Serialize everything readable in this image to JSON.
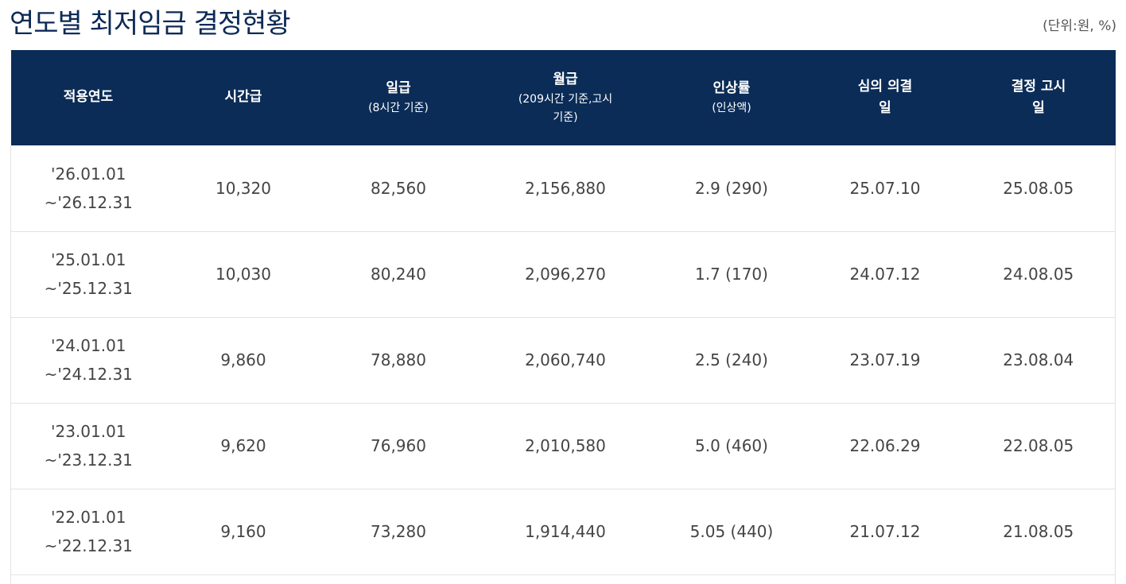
{
  "page": {
    "title": "연도별 최저임금 결정현황",
    "unit_note": "(단위:원, %)"
  },
  "table": {
    "headers": [
      {
        "main": "적용연도",
        "sub": ""
      },
      {
        "main": "시간급",
        "sub": ""
      },
      {
        "main": "일급",
        "sub": "(8시간 기준)"
      },
      {
        "main": "월급",
        "sub": "(209시간 기준,고시기준)"
      },
      {
        "main": "인상률",
        "sub": "(인상액)"
      },
      {
        "main": "심의 의결일",
        "sub": ""
      },
      {
        "main": "결정 고시일",
        "sub": ""
      }
    ],
    "rows": [
      {
        "period_start": "'26.01.01",
        "period_end": "~'26.12.31",
        "hourly": "10,320",
        "daily": "82,560",
        "monthly": "2,156,880",
        "increase": "2.9 (290)",
        "resolution_date": "25.07.10",
        "notice_date": "25.08.05"
      },
      {
        "period_start": "'25.01.01",
        "period_end": "~'25.12.31",
        "hourly": "10,030",
        "daily": "80,240",
        "monthly": "2,096,270",
        "increase": "1.7 (170)",
        "resolution_date": "24.07.12",
        "notice_date": "24.08.05"
      },
      {
        "period_start": "'24.01.01",
        "period_end": "~'24.12.31",
        "hourly": "9,860",
        "daily": "78,880",
        "monthly": "2,060,740",
        "increase": "2.5 (240)",
        "resolution_date": "23.07.19",
        "notice_date": "23.08.04"
      },
      {
        "period_start": "'23.01.01",
        "period_end": "~'23.12.31",
        "hourly": "9,620",
        "daily": "76,960",
        "monthly": "2,010,580",
        "increase": "5.0 (460)",
        "resolution_date": "22.06.29",
        "notice_date": "22.08.05"
      },
      {
        "period_start": "'22.01.01",
        "period_end": "~'22.12.31",
        "hourly": "9,160",
        "daily": "73,280",
        "monthly": "1,914,440",
        "increase": "5.05 (440)",
        "resolution_date": "21.07.12",
        "notice_date": "21.08.05"
      }
    ]
  },
  "colors": {
    "header_bg": "#0b2c57",
    "title": "#0d2a55"
  }
}
